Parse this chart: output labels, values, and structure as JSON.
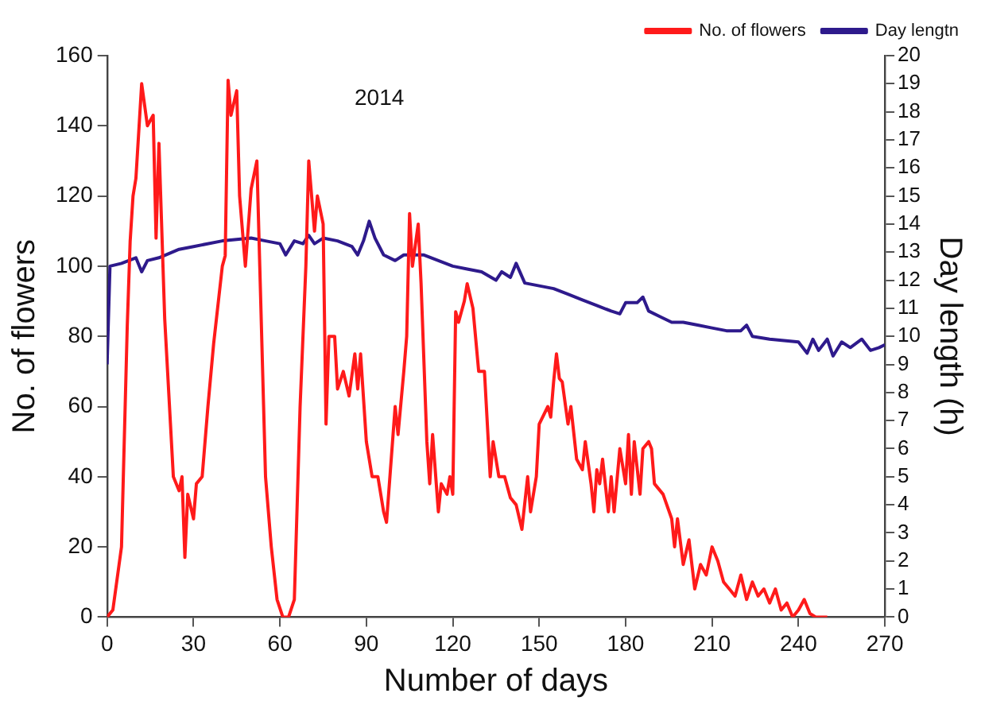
{
  "chart_data": {
    "type": "line",
    "title": "2014",
    "xlabel": "Number of days",
    "ylabel": "No. of flowers",
    "y2label": "Day length (h)",
    "xlim": [
      0,
      270
    ],
    "xticks": [
      0,
      30,
      60,
      90,
      120,
      150,
      180,
      210,
      240,
      270
    ],
    "ylim": [
      0,
      160
    ],
    "yticks": [
      0,
      20,
      40,
      60,
      80,
      100,
      120,
      140,
      160
    ],
    "y2lim": [
      0,
      20
    ],
    "y2ticks": [
      0,
      1,
      2,
      3,
      4,
      5,
      6,
      7,
      8,
      9,
      10,
      11,
      12,
      13,
      14,
      15,
      16,
      17,
      18,
      19,
      20
    ],
    "grid": false,
    "legend": "top right",
    "marker": "none",
    "line_style": "solid",
    "series": [
      {
        "name": "No. of flowers",
        "color": "#ff1a1a",
        "x": [
          0,
          2,
          5,
          7,
          8,
          9,
          10,
          12,
          14,
          16,
          17,
          18,
          20,
          23,
          25,
          26,
          27,
          28,
          30,
          31,
          33,
          35,
          37,
          40,
          41,
          42,
          43,
          45,
          46,
          48,
          50,
          52,
          53,
          55,
          57,
          59,
          61,
          63,
          65,
          67,
          69,
          70,
          72,
          73,
          75,
          76,
          77,
          79,
          80,
          82,
          84,
          86,
          87,
          88,
          90,
          92,
          94,
          96,
          97,
          100,
          101,
          103,
          104,
          105,
          106,
          108,
          109,
          111,
          112,
          113,
          115,
          116,
          118,
          119,
          120,
          121,
          122,
          124,
          125,
          127,
          129,
          131,
          133,
          134,
          136,
          138,
          140,
          142,
          144,
          146,
          147,
          149,
          150,
          153,
          154,
          155,
          156,
          157,
          158,
          160,
          161,
          163,
          165,
          166,
          168,
          169,
          170,
          171,
          172,
          174,
          175,
          176,
          178,
          180,
          181,
          182,
          183,
          185,
          186,
          188,
          189,
          190,
          193,
          196,
          197,
          198,
          200,
          202,
          204,
          206,
          208,
          210,
          212,
          214,
          216,
          218,
          220,
          222,
          224,
          226,
          228,
          230,
          232,
          234,
          236,
          238,
          240,
          242,
          244,
          246,
          250
        ],
        "values": [
          0,
          2,
          20,
          83,
          107,
          120,
          125,
          152,
          140,
          143,
          108,
          135,
          85,
          40,
          36,
          40,
          17,
          35,
          28,
          38,
          40,
          60,
          78,
          100,
          103,
          153,
          143,
          150,
          120,
          100,
          122,
          130,
          100,
          40,
          20,
          5,
          0,
          0,
          5,
          60,
          100,
          130,
          110,
          120,
          112,
          55,
          80,
          80,
          65,
          70,
          63,
          75,
          65,
          75,
          50,
          40,
          40,
          30,
          27,
          60,
          52,
          70,
          80,
          115,
          100,
          112,
          95,
          50,
          38,
          52,
          30,
          38,
          35,
          40,
          35,
          87,
          84,
          90,
          95,
          88,
          70,
          70,
          40,
          50,
          40,
          40,
          34,
          32,
          25,
          40,
          30,
          40,
          55,
          60,
          57,
          67,
          75,
          68,
          67,
          55,
          60,
          45,
          42,
          50,
          38,
          30,
          42,
          38,
          45,
          30,
          40,
          30,
          48,
          38,
          52,
          35,
          50,
          35,
          48,
          50,
          48,
          38,
          35,
          28,
          20,
          28,
          15,
          22,
          8,
          15,
          12,
          20,
          16,
          10,
          8,
          6,
          12,
          5,
          10,
          6,
          8,
          4,
          8,
          2,
          4,
          0,
          2,
          5,
          1,
          0,
          0
        ]
      },
      {
        "name": "Day lengtn",
        "color": "#2e1a8c",
        "axis": "y2",
        "x": [
          0,
          1,
          5,
          10,
          12,
          14,
          18,
          25,
          30,
          40,
          50,
          55,
          60,
          62,
          65,
          68,
          70,
          72,
          75,
          80,
          85,
          87,
          89,
          91,
          93,
          96,
          100,
          103,
          106,
          110,
          115,
          120,
          125,
          130,
          135,
          137,
          140,
          142,
          145,
          150,
          155,
          160,
          165,
          170,
          175,
          178,
          180,
          184,
          186,
          188,
          192,
          196,
          200,
          205,
          210,
          215,
          220,
          222,
          224,
          230,
          240,
          243,
          245,
          247,
          250,
          252,
          255,
          258,
          262,
          265,
          268,
          270
        ],
        "values": [
          9,
          12.5,
          12.6,
          12.8,
          12.3,
          12.7,
          12.8,
          13.1,
          13.2,
          13.4,
          13.5,
          13.4,
          13.3,
          12.9,
          13.4,
          13.3,
          13.6,
          13.3,
          13.5,
          13.4,
          13.2,
          12.9,
          13.4,
          14.1,
          13.5,
          12.9,
          12.7,
          12.9,
          12.9,
          12.9,
          12.7,
          12.5,
          12.4,
          12.3,
          12,
          12.3,
          12.1,
          12.6,
          11.9,
          11.8,
          11.7,
          11.5,
          11.3,
          11.1,
          10.9,
          10.8,
          11.2,
          11.2,
          11.4,
          10.9,
          10.7,
          10.5,
          10.5,
          10.4,
          10.3,
          10.2,
          10.2,
          10.4,
          10,
          9.9,
          9.8,
          9.4,
          9.9,
          9.5,
          9.9,
          9.3,
          9.8,
          9.6,
          9.9,
          9.5,
          9.6,
          9.7
        ]
      }
    ]
  }
}
